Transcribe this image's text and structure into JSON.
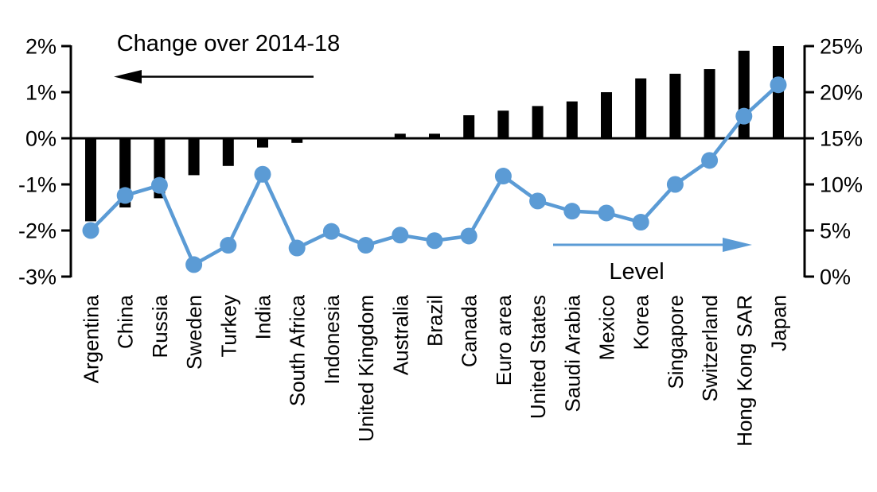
{
  "chart_data": {
    "type": "combo",
    "title": "",
    "categories": [
      "Argentina",
      "China",
      "Russia",
      "Sweden",
      "Turkey",
      "India",
      "South Africa",
      "Indonesia",
      "United Kingdom",
      "Australia",
      "Brazil",
      "Canada",
      "Euro area",
      "United States",
      "Saudi Arabia",
      "Mexico",
      "Korea",
      "Singapore",
      "Switzerland",
      "Hong Kong SAR",
      "Japan"
    ],
    "series": [
      {
        "name": "Change over 2014-18",
        "type": "bar",
        "axis": "left",
        "color": "#000000",
        "values": [
          -1.8,
          -1.5,
          -1.3,
          -0.8,
          -0.6,
          -0.2,
          -0.1,
          0.0,
          0.0,
          0.1,
          0.1,
          0.5,
          0.6,
          0.7,
          0.8,
          1.0,
          1.3,
          1.4,
          1.5,
          1.9,
          2.0
        ]
      },
      {
        "name": "Level",
        "type": "line",
        "axis": "right",
        "color": "#5B9BD5",
        "values": [
          5.0,
          8.8,
          9.9,
          1.3,
          3.4,
          11.1,
          3.1,
          4.9,
          3.4,
          4.5,
          3.9,
          4.4,
          10.9,
          8.2,
          7.1,
          6.9,
          5.9,
          10.0,
          12.6,
          17.4,
          20.8
        ]
      }
    ],
    "left_axis": {
      "ticks": [
        "2%",
        "1%",
        "0%",
        "-1%",
        "-2%",
        "-3%"
      ],
      "tick_values": [
        2,
        1,
        0,
        -1,
        -2,
        -3
      ],
      "min": -3,
      "max": 2
    },
    "right_axis": {
      "ticks": [
        "25%",
        "20%",
        "15%",
        "10%",
        "5%",
        "0%"
      ],
      "tick_values": [
        25,
        20,
        15,
        10,
        5,
        0
      ],
      "min": 0,
      "max": 25
    },
    "annotations": [
      {
        "text": "Change over 2014-18",
        "arrow": "left",
        "color": "#000000"
      },
      {
        "text": "Level",
        "arrow": "right",
        "color": "#5B9BD5"
      }
    ],
    "grid": false,
    "legend_position": "in-plot-annotations",
    "background": "#FFFFFF"
  }
}
